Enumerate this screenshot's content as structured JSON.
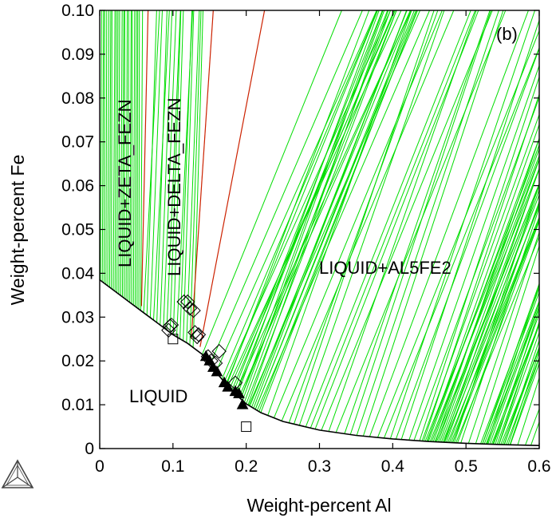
{
  "chart_data": {
    "type": "scatter",
    "panel_label": "(b)",
    "xlabel": "Weight-percent Al",
    "ylabel": "Weight-percent Fe",
    "xlim": [
      0,
      0.6
    ],
    "ylim": [
      0,
      0.1
    ],
    "x_ticks": [
      0,
      0.1,
      0.2,
      0.3,
      0.4,
      0.5,
      0.6
    ],
    "x_tick_labels": [
      "0",
      "0.1",
      "0.2",
      "0.3",
      "0.4",
      "0.5",
      "0.6"
    ],
    "y_ticks": [
      0,
      0.01,
      0.02,
      0.03,
      0.04,
      0.05,
      0.06,
      0.07,
      0.08,
      0.09,
      0.1
    ],
    "y_tick_labels": [
      "0",
      "0.01",
      "0.02",
      "0.03",
      "0.04",
      "0.05",
      "0.06",
      "0.07",
      "0.08",
      "0.09",
      "0.10"
    ],
    "grid": false,
    "colors": {
      "liquidus": "#000000",
      "tie_lines": "#00dd00",
      "phase_boundaries": "#cc2200"
    },
    "region_labels": [
      {
        "text": "LIQUID+ZETA_FEZN",
        "orientation": "vertical"
      },
      {
        "text": "LIQUID+DELTA_FEZN",
        "orientation": "vertical"
      },
      {
        "text": "LIQUID+AL5FE2",
        "orientation": "horizontal"
      },
      {
        "text": "LIQUID",
        "orientation": "horizontal"
      }
    ],
    "liquidus_curve": {
      "x": [
        0,
        0.02,
        0.04,
        0.06,
        0.08,
        0.1,
        0.12,
        0.14,
        0.16,
        0.18,
        0.2,
        0.22,
        0.25,
        0.3,
        0.35,
        0.4,
        0.45,
        0.5,
        0.55,
        0.6
      ],
      "y": [
        0.0385,
        0.036,
        0.0335,
        0.031,
        0.0285,
        0.026,
        0.024,
        0.0215,
        0.0172,
        0.0132,
        0.0102,
        0.0082,
        0.0062,
        0.0042,
        0.003,
        0.0022,
        0.0016,
        0.0012,
        0.0009,
        0.0007
      ]
    },
    "phase_boundaries": [
      {
        "x": [
          0.057,
          0.066
        ],
        "y": [
          0.0325,
          0.1
        ]
      },
      {
        "x": [
          0.125,
          0.155
        ],
        "y": [
          0.025,
          0.1
        ]
      },
      {
        "x": [
          0.137,
          0.225
        ],
        "y": [
          0.0232,
          0.1
        ]
      }
    ],
    "series": [
      {
        "marker": "diamond-open",
        "x": [
          0.094,
          0.096,
          0.098,
          0.115,
          0.12,
          0.123,
          0.128,
          0.13,
          0.133,
          0.135,
          0.148,
          0.152,
          0.158,
          0.163,
          0.185
        ],
        "y": [
          0.027,
          0.028,
          0.0282,
          0.0335,
          0.0335,
          0.032,
          0.0315,
          0.0265,
          0.0255,
          0.026,
          0.021,
          0.02,
          0.0195,
          0.0222,
          0.015
        ]
      },
      {
        "marker": "square-open",
        "x": [
          0.1,
          0.2
        ],
        "y": [
          0.025,
          0.005
        ]
      },
      {
        "marker": "triangle-filled",
        "x": [
          0.145,
          0.15,
          0.155,
          0.16,
          0.17,
          0.175,
          0.185,
          0.19,
          0.195
        ],
        "y": [
          0.021,
          0.02,
          0.0185,
          0.0175,
          0.015,
          0.014,
          0.013,
          0.0125,
          0.01
        ]
      }
    ]
  }
}
